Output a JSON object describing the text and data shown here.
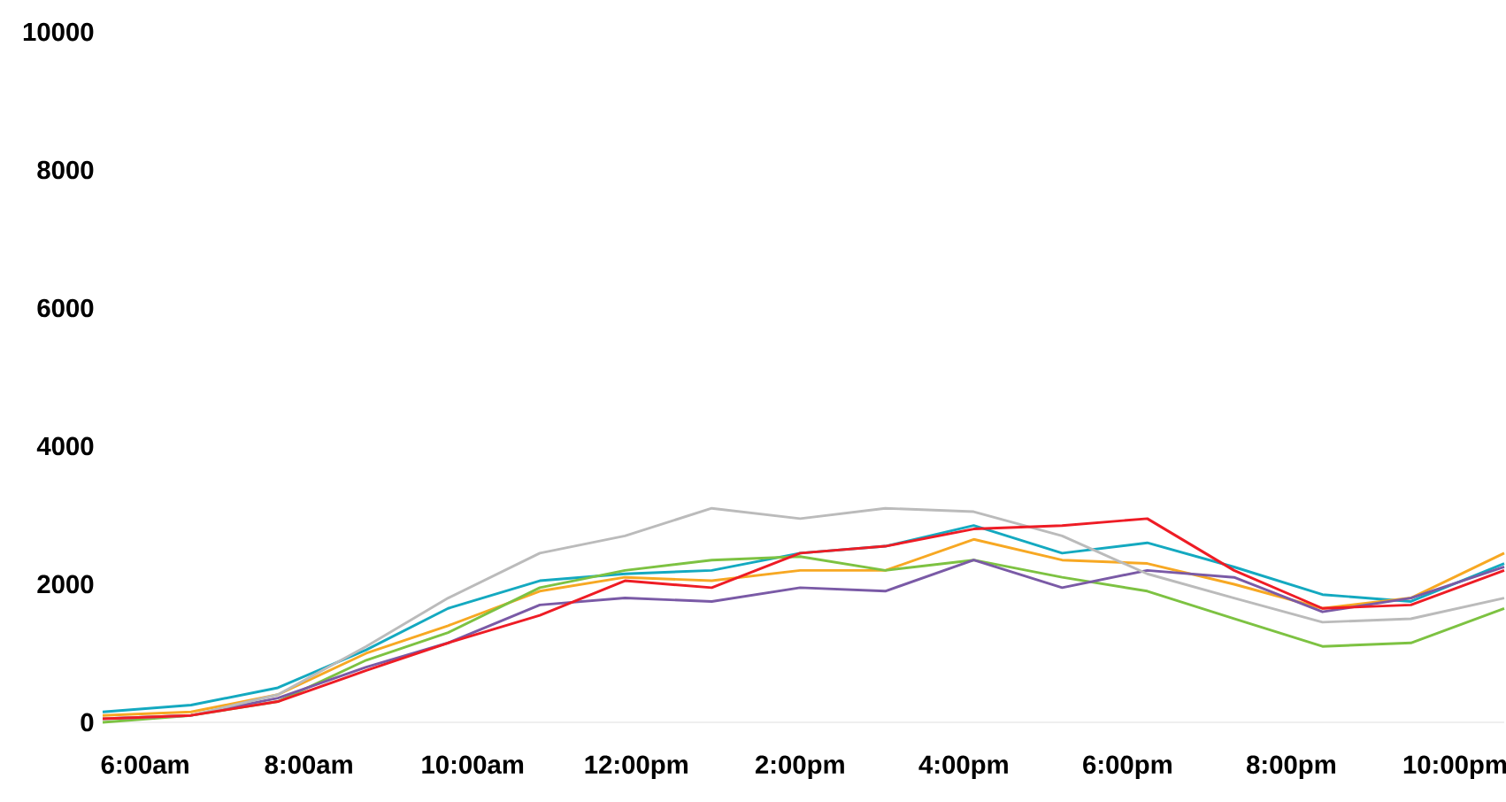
{
  "chart_data": {
    "type": "line",
    "x": [
      5.48,
      6.56,
      7.62,
      8.7,
      9.7,
      10.82,
      11.86,
      12.92,
      14.0,
      15.04,
      16.12,
      17.2,
      18.24,
      19.3,
      20.38,
      21.46,
      22.6
    ],
    "series": [
      {
        "color": "#14a9c0",
        "values": [
          150,
          250,
          500,
          1050,
          1650,
          2050,
          2150,
          2200,
          2450,
          2550,
          2850,
          2450,
          2600,
          2250,
          1850,
          1750,
          2300
        ]
      },
      {
        "color": "#f7a823",
        "values": [
          100,
          150,
          400,
          1000,
          1400,
          1900,
          2100,
          2050,
          2200,
          2200,
          2650,
          2350,
          2300,
          2000,
          1650,
          1800,
          2450
        ]
      },
      {
        "color": "#7dc242",
        "values": [
          0,
          100,
          300,
          900,
          1300,
          1950,
          2200,
          2350,
          2400,
          2200,
          2350,
          2100,
          1900,
          1500,
          1100,
          1150,
          1650
        ]
      },
      {
        "color": "#7a5aa6",
        "values": [
          50,
          100,
          350,
          800,
          1150,
          1700,
          1800,
          1750,
          1950,
          1900,
          2350,
          1950,
          2200,
          2100,
          1600,
          1800,
          2250
        ]
      },
      {
        "color": "#bbbbbb",
        "values": [
          50,
          100,
          400,
          1100,
          1800,
          2450,
          2700,
          3100,
          2950,
          3100,
          3050,
          2700,
          2150,
          1800,
          1450,
          1500,
          1800
        ]
      },
      {
        "color": "#ee1c25",
        "values": [
          50,
          100,
          300,
          750,
          1150,
          1550,
          2050,
          1950,
          2450,
          2550,
          2800,
          2850,
          2950,
          2200,
          1650,
          1700,
          2200
        ]
      }
    ],
    "xticks": [
      {
        "value": 6,
        "label": "6:00am"
      },
      {
        "value": 8,
        "label": "8:00am"
      },
      {
        "value": 10,
        "label": "10:00am"
      },
      {
        "value": 12,
        "label": "12:00pm"
      },
      {
        "value": 14,
        "label": "2:00pm"
      },
      {
        "value": 16,
        "label": "4:00pm"
      },
      {
        "value": 18,
        "label": "6:00pm"
      },
      {
        "value": 20,
        "label": "8:00pm"
      },
      {
        "value": 22,
        "label": "10:00pm"
      }
    ],
    "xlim": [
      5.48,
      22.6
    ],
    "ylim": [
      0,
      10000
    ],
    "yticks": [
      0,
      2000,
      4000,
      6000,
      8000,
      10000
    ],
    "grid": false,
    "legend": false,
    "marker": "none",
    "line_style": "solid"
  }
}
